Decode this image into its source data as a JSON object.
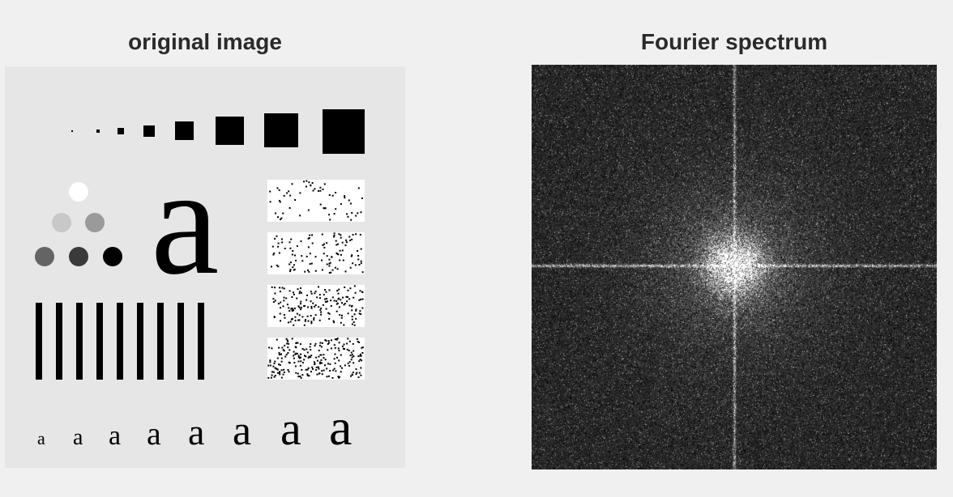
{
  "panels": {
    "left": {
      "title": "original image"
    },
    "right": {
      "title": "Fourier spectrum"
    }
  },
  "images": {
    "original": {
      "description_icon": "test-pattern-image",
      "big_letter": "a",
      "letters": [
        "a",
        "a",
        "a",
        "a",
        "a",
        "a",
        "a",
        "a"
      ],
      "background_color": "#e6e6e6"
    },
    "spectrum": {
      "description_icon": "fourier-spectrum-image",
      "background_color": "#161616"
    }
  }
}
